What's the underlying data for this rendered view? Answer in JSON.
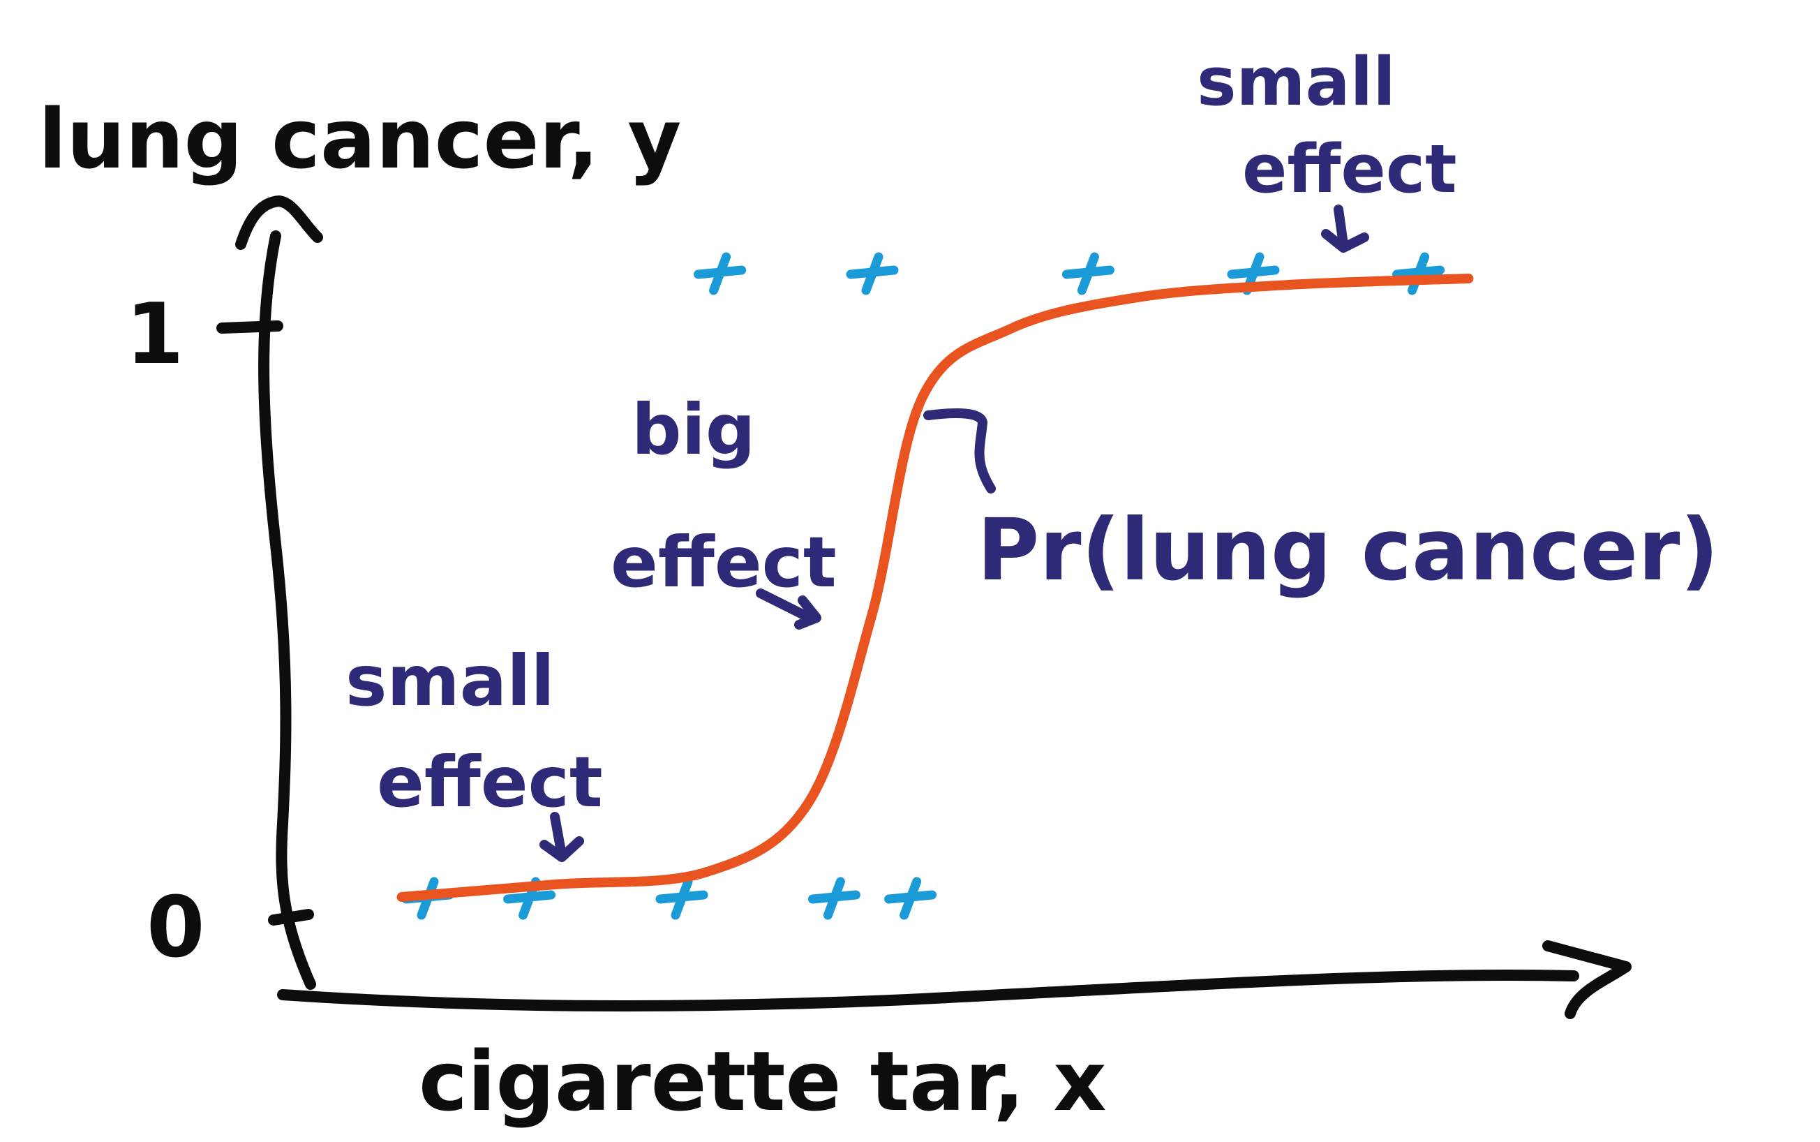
{
  "sketch": {
    "y_axis_label": "lung cancer, y",
    "x_axis_label": "cigarette tar, x",
    "tick_top": "1",
    "tick_bottom": "0",
    "curve_label": "Pr(lung cancer)",
    "annotations": {
      "small_effect_left": {
        "line1": "small",
        "line2": "effect"
      },
      "big_effect": {
        "line1": "big",
        "line2": "effect"
      },
      "small_effect_right": {
        "line1": "small",
        "line2": "effect"
      }
    }
  },
  "colors": {
    "axes": "#0d0d0d",
    "annotation": "#2e2a78",
    "curve": "#e8531f",
    "points": "#1a9ad6"
  },
  "icons": {
    "data_point": "cross-mark"
  },
  "chart_data": {
    "type": "scatter",
    "title": "",
    "xlabel": "cigarette tar, x",
    "ylabel": "lung cancer, y",
    "ylim": [
      0,
      1
    ],
    "y_ticks": [
      "0",
      "1"
    ],
    "series": [
      {
        "name": "",
        "kind": "points",
        "points": [
          {
            "x": 0.1,
            "y": 0
          },
          {
            "x": 0.18,
            "y": 0
          },
          {
            "x": 0.3,
            "y": 0
          },
          {
            "x": 0.42,
            "y": 0
          },
          {
            "x": 0.48,
            "y": 0
          },
          {
            "x": 0.33,
            "y": 1
          },
          {
            "x": 0.45,
            "y": 1
          },
          {
            "x": 0.62,
            "y": 1
          },
          {
            "x": 0.75,
            "y": 1
          },
          {
            "x": 0.88,
            "y": 1
          }
        ]
      },
      {
        "name": "Pr(lung cancer)",
        "kind": "curve",
        "points": [
          {
            "x": 0.08,
            "y": 0.0
          },
          {
            "x": 0.2,
            "y": 0.02
          },
          {
            "x": 0.32,
            "y": 0.04
          },
          {
            "x": 0.4,
            "y": 0.15
          },
          {
            "x": 0.45,
            "y": 0.45
          },
          {
            "x": 0.49,
            "y": 0.8
          },
          {
            "x": 0.56,
            "y": 0.91
          },
          {
            "x": 0.66,
            "y": 0.96
          },
          {
            "x": 0.78,
            "y": 0.98
          },
          {
            "x": 0.92,
            "y": 0.99
          }
        ]
      }
    ],
    "grid": false
  }
}
